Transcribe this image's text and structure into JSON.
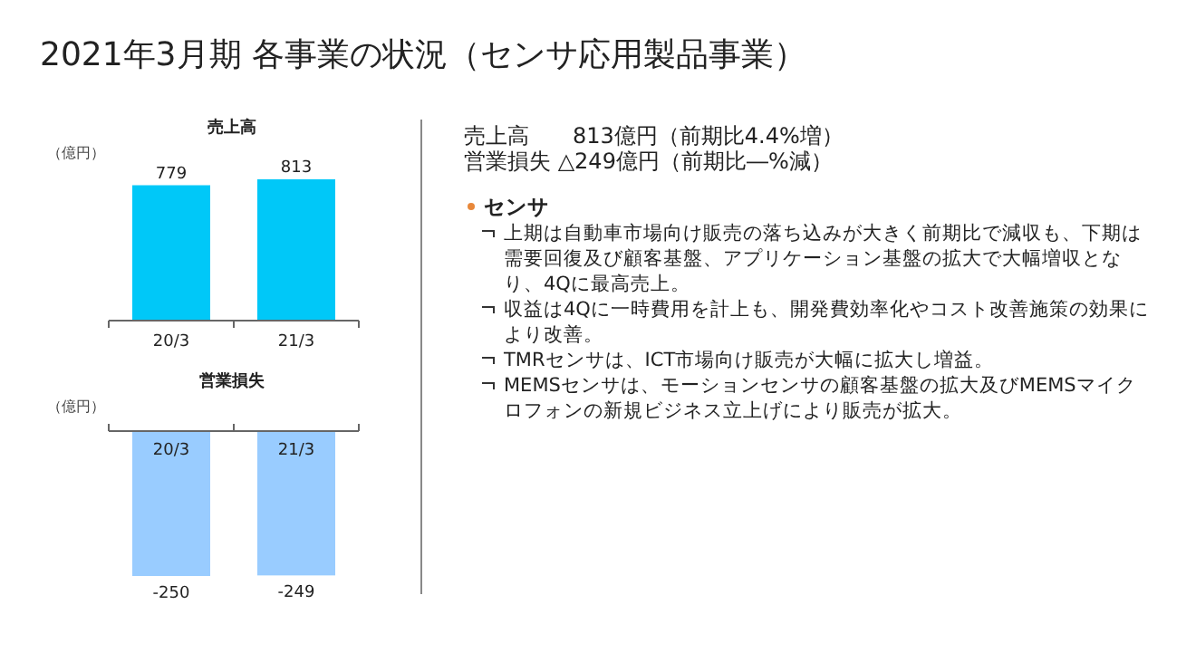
{
  "chart_data": [
    {
      "type": "bar",
      "title": "売上高",
      "ylabel": "（億円）",
      "categories": [
        "20/3",
        "21/3"
      ],
      "values": [
        779,
        813
      ],
      "color": "#00c8f8",
      "data_labels": true
    },
    {
      "type": "bar",
      "title": "営業損失",
      "ylabel": "（億円）",
      "categories": [
        "20/3",
        "21/3"
      ],
      "values": [
        -250,
        -249
      ],
      "color": "#99ccff",
      "data_labels": true
    },
    {
      "type": "other",
      "title": "2021年3月期 各事業の状況（センサ応用製品事業）",
      "annotations": [
        "売上高　　813億円（前期比4.4%増）",
        "営業損失 △249億円（前期比―%減）",
        "センサ",
        "上期は自動車市場向け販売の落ち込みが大きく前期比で減収も、下期は需要回復及び顧客基盤、アプリケーション基盤の拡大で大幅増収となり、4Qに最高売上。",
        "収益は4Qに一時費用を計上も、開発費効率化やコスト改善施策の効果により改善。",
        "TMRセンサは、ICT市場向け販売が大幅に拡大し増益。",
        "MEMSセンサは、モーションセンサの顧客基盤の拡大及びMEMSマイクロフォンの新規ビジネス立上げにより販売が拡大。"
      ]
    }
  ]
}
